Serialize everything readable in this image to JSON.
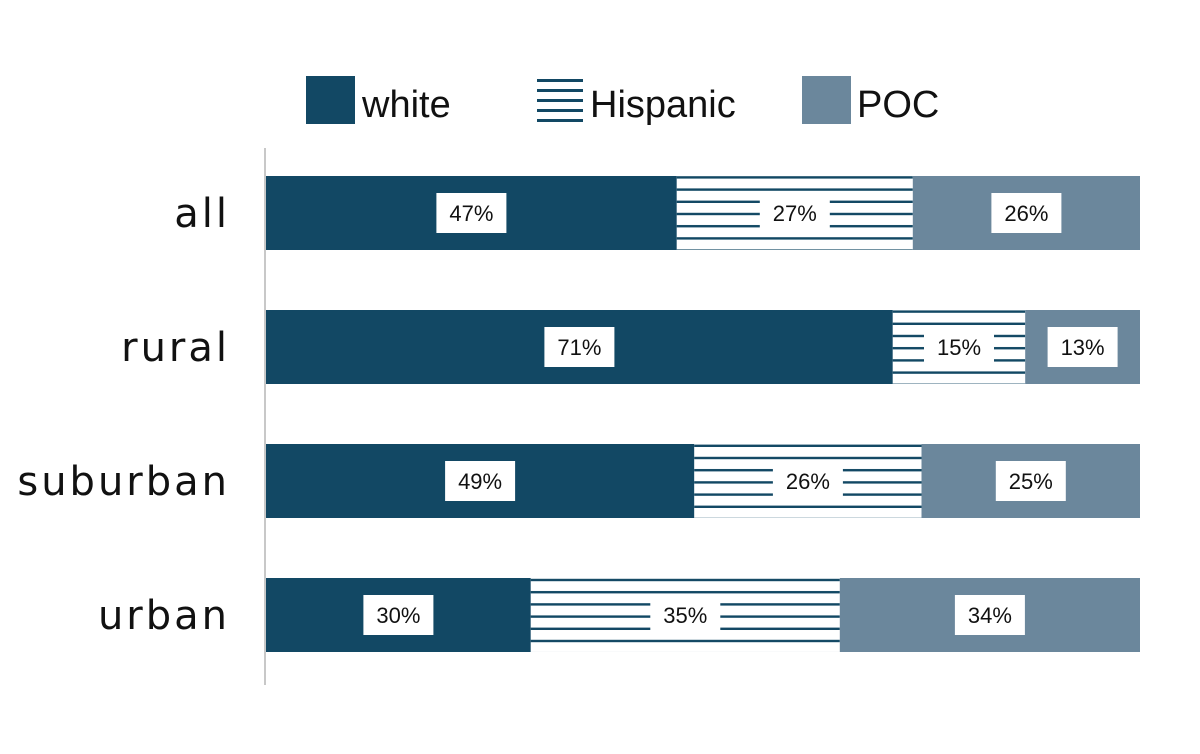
{
  "chart_data": {
    "type": "bar",
    "orientation": "horizontal",
    "stacked": true,
    "percent": true,
    "categories": [
      "all",
      "rural",
      "suburban",
      "urban"
    ],
    "series": [
      {
        "name": "white",
        "values": [
          47,
          71,
          49,
          30
        ],
        "color": "#124864",
        "pattern": "solid"
      },
      {
        "name": "Hispanic",
        "values": [
          27,
          15,
          26,
          35
        ],
        "color": "#124864",
        "pattern": "horizontal-lines"
      },
      {
        "name": "POC",
        "values": [
          26,
          13,
          25,
          34
        ],
        "color": "#6b879c",
        "pattern": "solid"
      }
    ],
    "legend_position": "top",
    "grid": false,
    "xlim": [
      0,
      100
    ]
  }
}
